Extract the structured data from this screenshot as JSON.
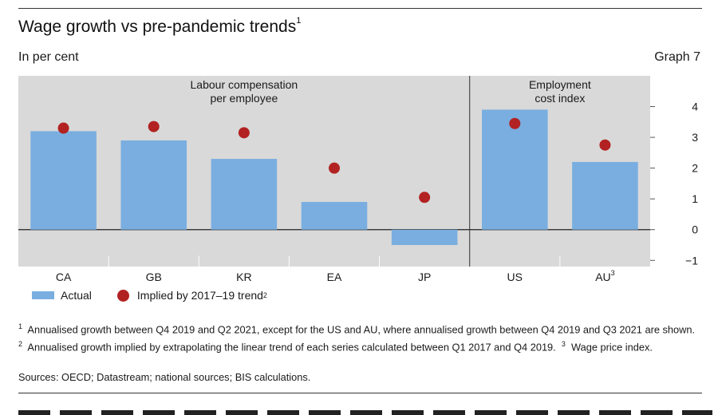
{
  "header": {
    "title": "Wage growth vs pre-pandemic trends",
    "title_footnote": "1",
    "unit_label": "In per cent",
    "graph_label": "Graph 7"
  },
  "chart_data": {
    "type": "bar",
    "categories": [
      "CA",
      "GB",
      "KR",
      "EA",
      "JP",
      "US",
      "AU"
    ],
    "category_footnotes": {
      "AU": "3"
    },
    "series": [
      {
        "name": "Actual",
        "kind": "bar",
        "color": "#7aaee0",
        "values": [
          3.2,
          2.9,
          2.3,
          0.9,
          -0.5,
          3.9,
          2.2
        ]
      },
      {
        "name": "Implied by 2017–19 trend",
        "kind": "dot",
        "color": "#b22222",
        "footnote": "2",
        "values": [
          3.3,
          3.35,
          3.15,
          2.0,
          1.05,
          3.45,
          2.75
        ]
      }
    ],
    "panels": [
      {
        "label_line1": "Labour compensation",
        "label_line2": "per employee",
        "categories": [
          "CA",
          "GB",
          "KR",
          "EA",
          "JP"
        ]
      },
      {
        "label_line1": "Employment",
        "label_line2": "cost index",
        "categories": [
          "US",
          "AU"
        ]
      }
    ],
    "ylim": [
      -1.2,
      5
    ],
    "yticks": [
      -1,
      0,
      1,
      2,
      3,
      4
    ],
    "ytick_labels": [
      "−1",
      "0",
      "1",
      "2",
      "3",
      "4"
    ],
    "background": "#d9d9d9",
    "xlabel": "",
    "ylabel": ""
  },
  "legend": {
    "actual_label": "Actual",
    "trend_label": "Implied by 2017–19 trend",
    "trend_footnote": "2"
  },
  "footnotes": {
    "n1_mark": "1",
    "n1_text": "Annualised growth between Q4 2019 and Q2 2021, except for the US and AU, where annualised growth between Q4 2019 and Q3 2021 are shown.",
    "n2_mark": "2",
    "n2_text": "Annualised growth implied by extrapolating the linear trend of each series calculated between Q1 2017 and Q4 2019.",
    "n3_mark": "3",
    "n3_text": "Wage price index."
  },
  "sources": "Sources: OECD; Datastream; national sources; BIS calculations."
}
